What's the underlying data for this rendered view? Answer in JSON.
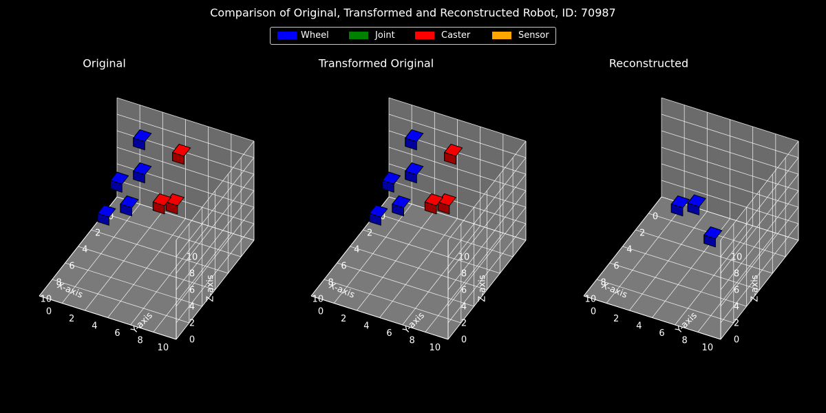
{
  "figure": {
    "title": "Comparison of Original, Transformed and Reconstructed Robot, ID: 70987"
  },
  "legend": {
    "placement": "top-center",
    "items": [
      {
        "label": "Wheel",
        "color": "#0000ff"
      },
      {
        "label": "Joint",
        "color": "#008000"
      },
      {
        "label": "Caster",
        "color": "#ff0000"
      },
      {
        "label": "Sensor",
        "color": "#ffa500"
      }
    ]
  },
  "chart_data": [
    {
      "type": "3d-voxel",
      "title": "Original",
      "xlabel": "X-axis",
      "ylabel": "Y-axis",
      "zlabel": "Z-axis",
      "xlim": [
        0,
        12
      ],
      "ylim": [
        0,
        12
      ],
      "zlim": [
        0,
        12
      ],
      "xticks": [
        "0",
        "2",
        "4",
        "6",
        "8",
        "10"
      ],
      "yticks": [
        "0",
        "2",
        "4",
        "6",
        "8",
        "10"
      ],
      "zticks": [
        "0",
        "2",
        "4",
        "6",
        "8",
        "10"
      ],
      "grid": true,
      "voxels": [
        {
          "x": 0,
          "y": 2,
          "z": 8,
          "part": "Wheel"
        },
        {
          "x": 0,
          "y": 2,
          "z": 4,
          "part": "Wheel"
        },
        {
          "x": 0,
          "y": 0,
          "z": 2,
          "part": "Wheel"
        },
        {
          "x": 2,
          "y": 0,
          "z": 0,
          "part": "Wheel"
        },
        {
          "x": 2,
          "y": 2,
          "z": 2,
          "part": "Wheel"
        },
        {
          "x": 1,
          "y": 6,
          "z": 9,
          "part": "Caster"
        },
        {
          "x": 2,
          "y": 6,
          "z": 4,
          "part": "Caster"
        },
        {
          "x": 4,
          "y": 6,
          "z": 6,
          "part": "Caster"
        }
      ]
    },
    {
      "type": "3d-voxel",
      "title": "Transformed Original",
      "xlabel": "X-axis",
      "ylabel": "Y-axis",
      "zlabel": "Z-axis",
      "xlim": [
        0,
        12
      ],
      "ylim": [
        0,
        12
      ],
      "zlim": [
        0,
        12
      ],
      "xticks": [
        "0",
        "2",
        "4",
        "6",
        "8",
        "10"
      ],
      "yticks": [
        "0",
        "2",
        "4",
        "6",
        "8",
        "10"
      ],
      "zticks": [
        "0",
        "2",
        "4",
        "6",
        "8",
        "10"
      ],
      "grid": true,
      "voxels": [
        {
          "x": 0,
          "y": 2,
          "z": 8,
          "part": "Wheel"
        },
        {
          "x": 0,
          "y": 2,
          "z": 4,
          "part": "Wheel"
        },
        {
          "x": 0,
          "y": 0,
          "z": 2,
          "part": "Wheel"
        },
        {
          "x": 2,
          "y": 0,
          "z": 0,
          "part": "Wheel"
        },
        {
          "x": 2,
          "y": 2,
          "z": 2,
          "part": "Wheel"
        },
        {
          "x": 1,
          "y": 6,
          "z": 9,
          "part": "Caster"
        },
        {
          "x": 2,
          "y": 6,
          "z": 4,
          "part": "Caster"
        },
        {
          "x": 4,
          "y": 6,
          "z": 6,
          "part": "Caster"
        }
      ]
    },
    {
      "type": "3d-voxel",
      "title": "Reconstructed",
      "xlabel": "X-axis",
      "ylabel": "Y-axis",
      "zlabel": "Z-axis",
      "xlim": [
        0,
        12
      ],
      "ylim": [
        0,
        12
      ],
      "zlim": [
        0,
        12
      ],
      "xticks": [
        "0",
        "2",
        "4",
        "6",
        "8",
        "10"
      ],
      "yticks": [
        "0",
        "2",
        "4",
        "6",
        "8",
        "10"
      ],
      "zticks": [
        "0",
        "2",
        "4",
        "6",
        "8",
        "10"
      ],
      "grid": true,
      "voxels": [
        {
          "x": 1,
          "y": 2,
          "z": 1,
          "part": "Wheel"
        },
        {
          "x": 2,
          "y": 4,
          "z": 3,
          "part": "Wheel"
        },
        {
          "x": 3,
          "y": 6,
          "z": 1,
          "part": "Wheel"
        }
      ]
    }
  ]
}
